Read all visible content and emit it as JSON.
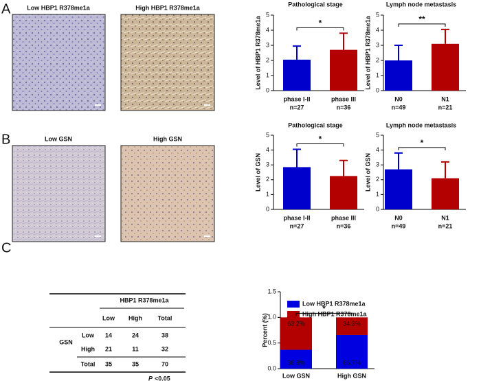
{
  "panel_labels": [
    "A",
    "B",
    "C"
  ],
  "images": [
    {
      "label": "Low HBP1 R378me1a"
    },
    {
      "label": "High HBP1 R378me1a"
    },
    {
      "label": "Low GSN"
    },
    {
      "label": "High GSN"
    }
  ],
  "chart_data": [
    {
      "type": "bar",
      "title": "Pathological stage",
      "ylabel": "Level of HBP1 R378me1a",
      "categories": [
        "phase I-II",
        "phase III"
      ],
      "n_labels": [
        "n=27",
        "n=36"
      ],
      "values": [
        2.05,
        2.7
      ],
      "errors": [
        0.9,
        1.1
      ],
      "colors": [
        "#0000cc",
        "#b30000"
      ],
      "significance": "*",
      "ylim": [
        0,
        5
      ],
      "yticks": [
        0,
        1,
        2,
        3,
        4,
        5
      ]
    },
    {
      "type": "bar",
      "title": "Lymph node metastasis",
      "ylabel": "Level of HBP1 R378me1a",
      "categories": [
        "N0",
        "N1"
      ],
      "n_labels": [
        "n=49",
        "n=21"
      ],
      "values": [
        2.0,
        3.1
      ],
      "errors": [
        1.0,
        0.95
      ],
      "colors": [
        "#0000cc",
        "#b30000"
      ],
      "significance": "**",
      "ylim": [
        0,
        5
      ],
      "yticks": [
        0,
        1,
        2,
        3,
        4,
        5
      ]
    },
    {
      "type": "bar",
      "title": "Pathological stage",
      "ylabel": "Level of GSN",
      "categories": [
        "phase I-II",
        "phase III"
      ],
      "n_labels": [
        "n=27",
        "n=36"
      ],
      "values": [
        2.85,
        2.25
      ],
      "errors": [
        1.2,
        1.05
      ],
      "colors": [
        "#0000cc",
        "#b30000"
      ],
      "significance": "*",
      "ylim": [
        0,
        5
      ],
      "yticks": [
        0,
        1,
        2,
        3,
        4,
        5
      ]
    },
    {
      "type": "bar",
      "title": "Lymph node metastasis",
      "ylabel": "Level of GSN",
      "categories": [
        "N0",
        "N1"
      ],
      "n_labels": [
        "n=49",
        "n=21"
      ],
      "values": [
        2.7,
        2.1
      ],
      "errors": [
        1.1,
        1.1
      ],
      "colors": [
        "#0000cc",
        "#b30000"
      ],
      "significance": "*",
      "ylim": [
        0,
        5
      ],
      "yticks": [
        0,
        1,
        2,
        3,
        4,
        5
      ]
    },
    {
      "type": "stacked_bar",
      "ylabel": "Percent (%)",
      "categories": [
        "Low GSN",
        "High GSN"
      ],
      "significance": "*",
      "series": [
        {
          "name": "Low HBP1 R378me1a",
          "color": "#0000e0",
          "values": [
            0.368,
            0.657
          ],
          "value_labels": [
            "36.8%",
            "65.7%"
          ]
        },
        {
          "name": "High HBP1 R378me1a",
          "color": "#b30000",
          "values": [
            0.632,
            0.343
          ],
          "value_labels": [
            "63.2%",
            "34.3%"
          ]
        }
      ],
      "ylim": [
        0,
        1.5
      ],
      "yticks": [
        {
          "value": 0,
          "label": "0.0"
        },
        {
          "value": 0.5,
          "label": "0.5"
        },
        {
          "value": 1,
          "label": "1.0"
        },
        {
          "value": 1.5,
          "label": "1.5"
        }
      ]
    }
  ],
  "table": {
    "header": "HBP1 R378me1a",
    "columns": [
      "Low",
      "High",
      "Total"
    ],
    "row_group": "GSN",
    "rows": [
      [
        "Low",
        14,
        24,
        38
      ],
      [
        "High",
        21,
        11,
        32
      ],
      [
        "Total",
        35,
        35,
        70
      ]
    ],
    "footnote": {
      "p": "P",
      "text": "<0.05"
    }
  }
}
